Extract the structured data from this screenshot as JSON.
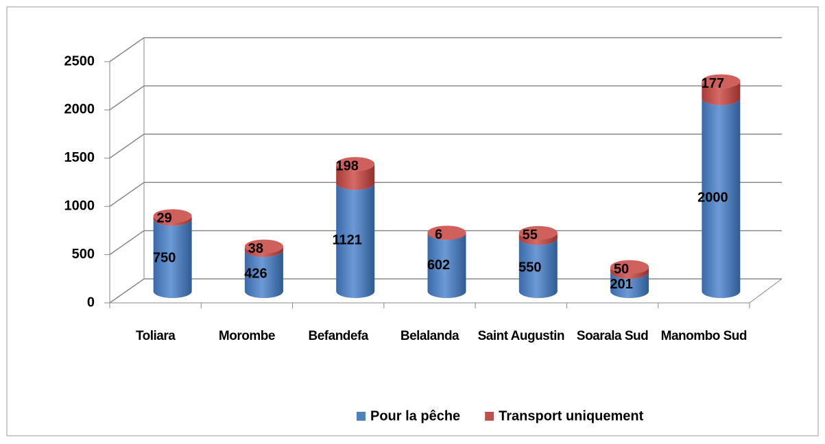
{
  "chart_data": {
    "type": "bar",
    "stacked": true,
    "categories": [
      "Toliara",
      "Morombe",
      "Befandefa",
      "Belalanda",
      "Saint Augustin",
      "Soarala Sud",
      "Manombo Sud"
    ],
    "series": [
      {
        "name": "Pour la pêche",
        "color": "#4f81bd",
        "values": [
          750,
          426,
          1121,
          602,
          550,
          201,
          2000
        ]
      },
      {
        "name": "Transport uniquement",
        "color": "#c0504d",
        "values": [
          29,
          38,
          198,
          6,
          55,
          50,
          177
        ]
      }
    ],
    "ylim": [
      0,
      2500
    ],
    "yticks": [
      0,
      500,
      1000,
      1500,
      2000,
      2500
    ],
    "grid": true,
    "legend": "bottom"
  }
}
